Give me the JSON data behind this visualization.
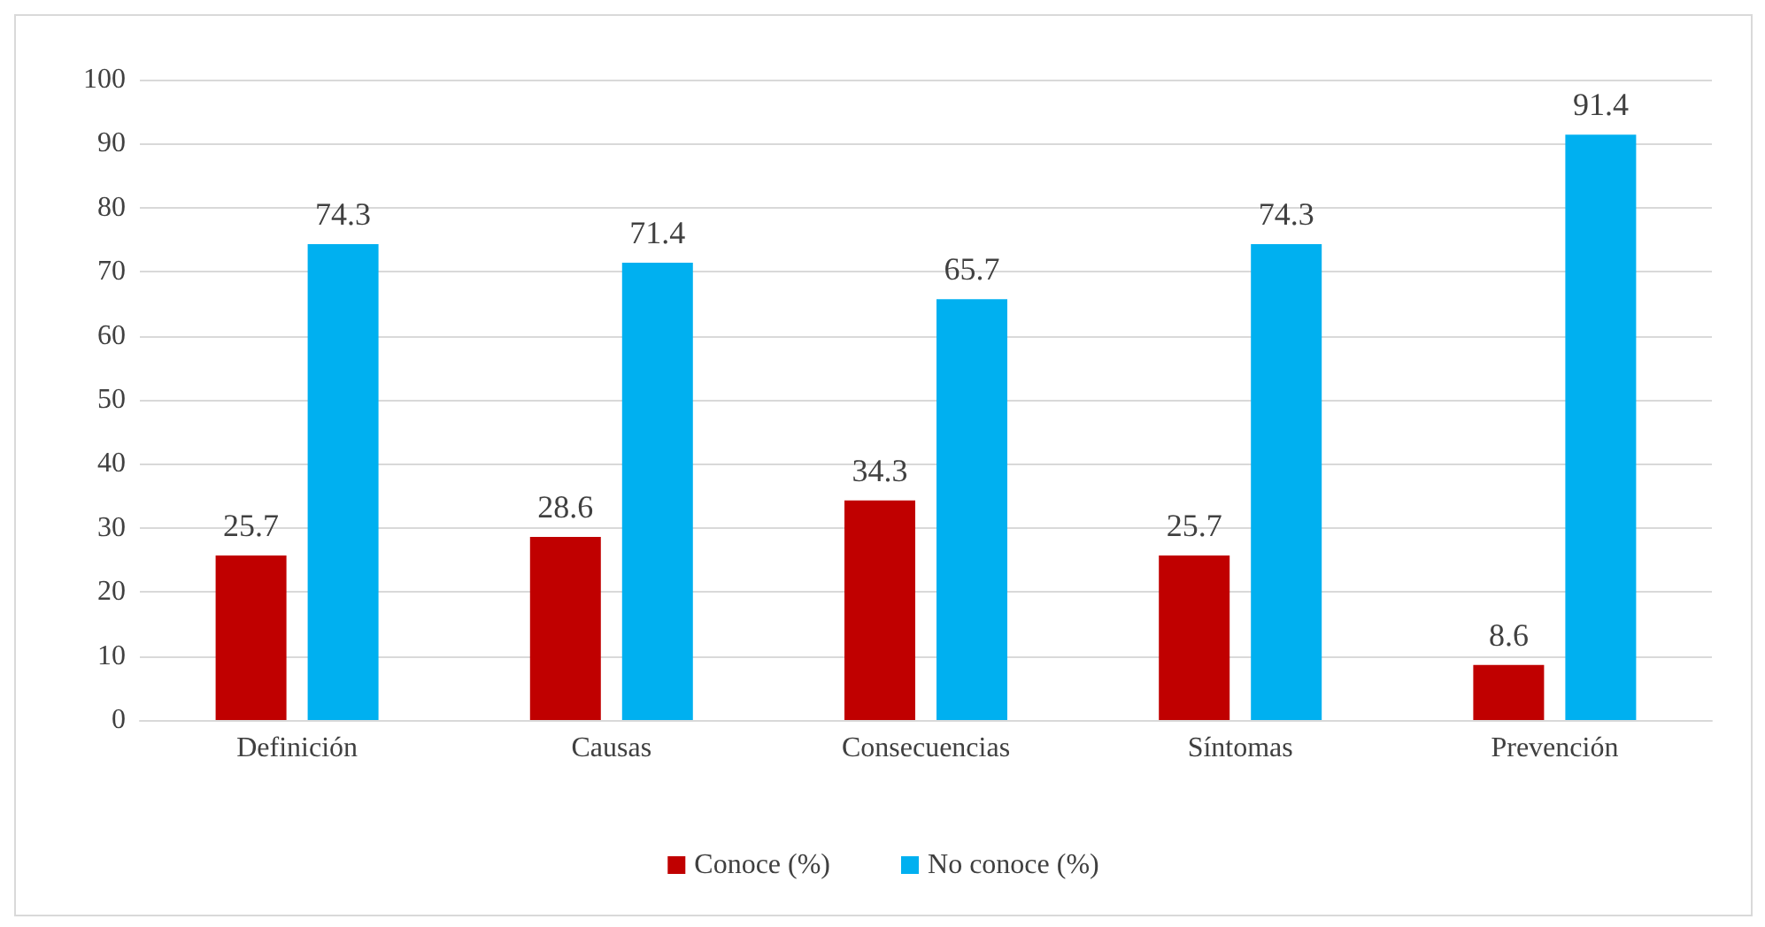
{
  "chart_data": {
    "type": "bar",
    "categories": [
      "Definición",
      "Causas",
      "Consecuencias",
      "Síntomas",
      "Prevención"
    ],
    "series": [
      {
        "name": "Conoce (%)",
        "color": "#c00000",
        "values": [
          25.7,
          28.6,
          34.3,
          25.7,
          8.6
        ]
      },
      {
        "name": "No conoce (%)",
        "color": "#00b0f0",
        "values": [
          74.3,
          71.4,
          65.7,
          74.3,
          91.4
        ]
      }
    ],
    "ylim": [
      0,
      100
    ],
    "yticks": [
      0,
      10,
      20,
      30,
      40,
      50,
      60,
      70,
      80,
      90,
      100
    ],
    "grid": "y",
    "legend": "bottom",
    "data_labels": true
  }
}
